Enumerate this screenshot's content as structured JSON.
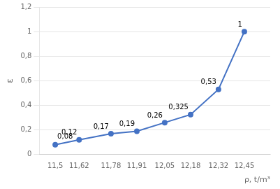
{
  "chart_data": {
    "type": "line",
    "xlabel": "ρ, t/m³",
    "ylabel": "ε",
    "x": [
      11.5,
      11.62,
      11.78,
      11.91,
      12.05,
      12.18,
      12.32,
      12.45
    ],
    "values": [
      0.08,
      0.12,
      0.17,
      0.19,
      0.26,
      0.325,
      0.53,
      1.0
    ],
    "value_labels": [
      "0,08",
      "0,12",
      "0,17",
      "0,19",
      "0,26",
      "0,325",
      "0,53",
      "1"
    ],
    "data_labels": true,
    "color": "#4472C4",
    "marker": "circle",
    "xlim": [
      11.42,
      12.58
    ],
    "xticks": [
      {
        "value": 11.5,
        "label": "11,5"
      },
      {
        "value": 11.62,
        "label": "11,62"
      },
      {
        "value": 11.78,
        "label": "11,78"
      },
      {
        "value": 11.91,
        "label": "11,91"
      },
      {
        "value": 12.05,
        "label": "12,05"
      },
      {
        "value": 12.18,
        "label": "12,18"
      },
      {
        "value": 12.32,
        "label": "12,32"
      },
      {
        "value": 12.45,
        "label": "12,45"
      }
    ],
    "ylim": [
      0,
      1.2
    ],
    "yticks": [
      0,
      {
        "value": 0.2,
        "label": "0,2"
      },
      {
        "value": 0.4,
        "label": "0,4"
      },
      {
        "value": 0.6,
        "label": "0,6"
      },
      {
        "value": 0.8,
        "label": "0,8"
      },
      1,
      {
        "value": 1.2,
        "label": "1,2"
      }
    ],
    "grid": "y"
  }
}
